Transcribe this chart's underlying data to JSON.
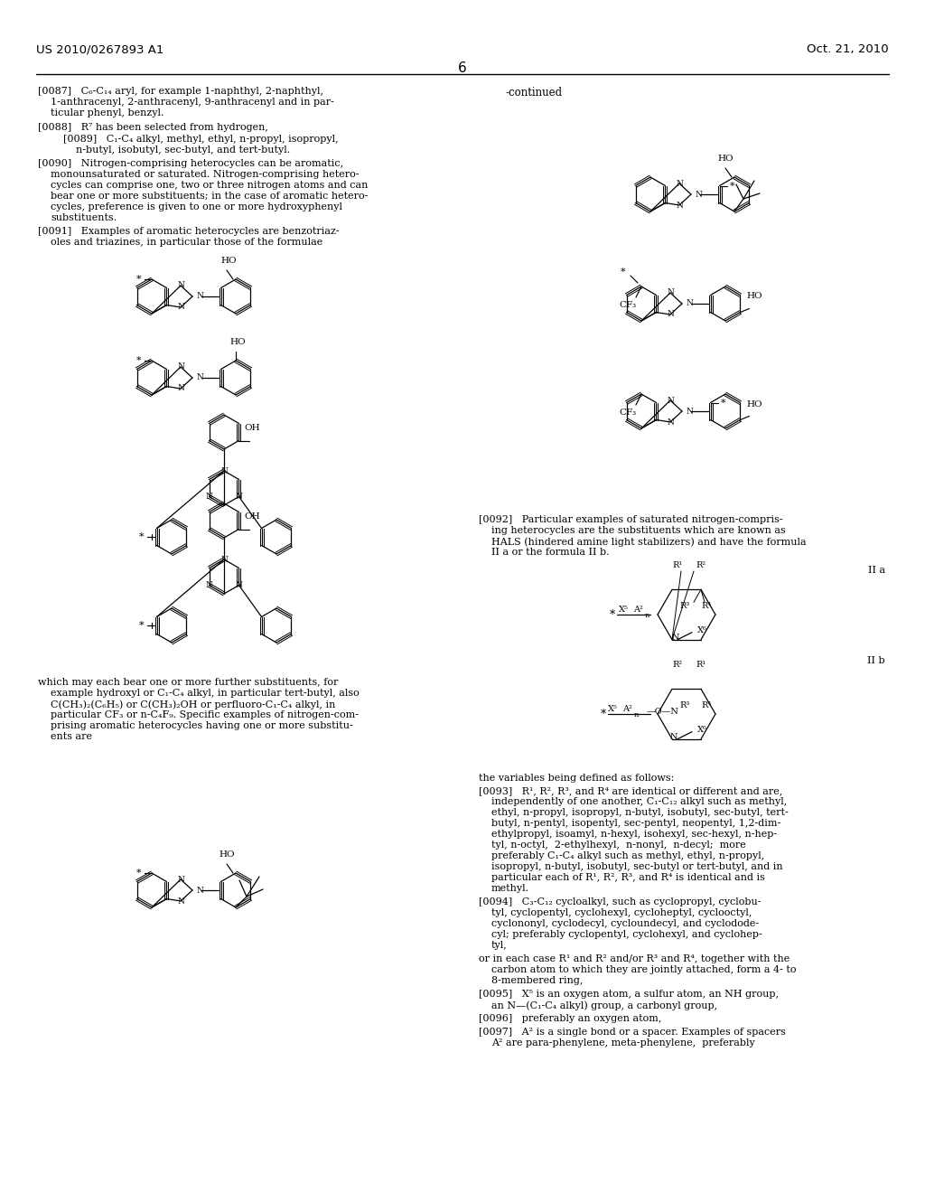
{
  "bg_color": "#ffffff",
  "header_left": "US 2010/0267893 A1",
  "header_right": "Oct. 21, 2010",
  "page_number": "6"
}
